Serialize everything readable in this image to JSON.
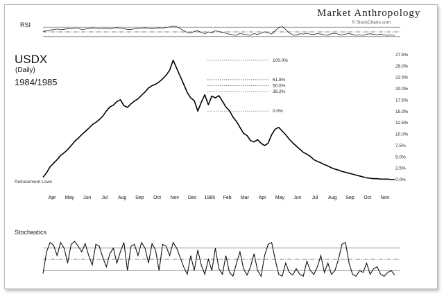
{
  "brand": {
    "name": "Market Anthropology",
    "credit": "© StockCharts.com"
  },
  "chart_data": {
    "type": "line",
    "title": "USDX",
    "subtitle": "(Daily)",
    "period": "1984/1985",
    "x_labels": [
      "Apr",
      "May",
      "Jun",
      "Jul",
      "Aug",
      "Sep",
      "Oct",
      "Nov",
      "Dec",
      "1985",
      "Feb",
      "Mar",
      "Apr",
      "May",
      "Jun",
      "Jul",
      "Aug",
      "Sep",
      "Oct",
      "Nov"
    ],
    "annotation_left": "Retracement Lows",
    "retracement": {
      "levels": [
        {
          "label": "100.0%",
          "value": 100.0
        },
        {
          "label": "61.8%",
          "value": 61.8
        },
        {
          "label": "50.0%",
          "value": 50.0
        },
        {
          "label": "38.2%",
          "value": 38.2
        },
        {
          "label": "0.0%",
          "value": 0.0
        }
      ]
    },
    "right_axis": {
      "ticks": [
        "27.5%",
        "25.0%",
        "22.5%",
        "20.0%",
        "17.5%",
        "15.0%",
        "12.5%",
        "10.0%",
        "7.5%",
        "5.0%",
        "2.5%",
        "0.0%"
      ],
      "range": [
        0,
        27.5
      ]
    },
    "series": [
      {
        "name": "USDX",
        "x": [
          0,
          1,
          2,
          3,
          4,
          5,
          6,
          7,
          8,
          9,
          10,
          11,
          12,
          13,
          14,
          15,
          16,
          17,
          18,
          19,
          20,
          21,
          22,
          23,
          24,
          25,
          26,
          27,
          28,
          29,
          30,
          31,
          32,
          33,
          34,
          35,
          36,
          37,
          38,
          39,
          40,
          41,
          42,
          43,
          44,
          45,
          46,
          47,
          48,
          49,
          50,
          51,
          52,
          53,
          54,
          55,
          56,
          57,
          58,
          59,
          60,
          61,
          62,
          63,
          64,
          65,
          66,
          67,
          68,
          69,
          70,
          71,
          72,
          73,
          74,
          75,
          76,
          77,
          78,
          79,
          80,
          81,
          82,
          83,
          84,
          85,
          86,
          87,
          88,
          89,
          90,
          91,
          92,
          93,
          94,
          95,
          96,
          97,
          98,
          99,
          100
        ],
        "values": [
          0.5,
          1.5,
          2.8,
          3.6,
          4.4,
          5.3,
          5.9,
          6.6,
          7.5,
          8.4,
          9.1,
          9.9,
          10.6,
          11.3,
          12.1,
          12.6,
          13.2,
          14.0,
          15.1,
          16.0,
          16.4,
          17.2,
          17.6,
          16.3,
          15.9,
          16.7,
          17.3,
          17.8,
          18.6,
          19.3,
          20.2,
          20.7,
          21.0,
          21.5,
          22.2,
          23.0,
          24.1,
          26.3,
          24.5,
          22.8,
          21.0,
          19.2,
          18.0,
          17.4,
          15.1,
          17.0,
          18.7,
          16.5,
          18.4,
          18.0,
          18.5,
          17.3,
          16.0,
          15.2,
          13.8,
          12.8,
          11.5,
          10.2,
          9.7,
          8.6,
          8.3,
          8.8,
          8.0,
          7.5,
          8.0,
          9.9,
          11.1,
          11.5,
          10.7,
          9.9,
          8.9,
          8.1,
          7.4,
          6.7,
          6.0,
          5.6,
          5.1,
          4.4,
          4.0,
          3.7,
          3.3,
          3.0,
          2.6,
          2.3,
          2.1,
          1.8,
          1.6,
          1.4,
          1.2,
          1.0,
          0.8,
          0.6,
          0.4,
          0.3,
          0.2,
          0.2,
          0.1,
          0.1,
          0.1,
          0.0,
          0.0
        ]
      }
    ],
    "rsi": {
      "label": "RSI",
      "range": [
        0,
        100
      ],
      "guides": [
        70,
        50,
        30
      ],
      "values": [
        52,
        55,
        58,
        60,
        62,
        59,
        61,
        64,
        63,
        66,
        65,
        60,
        62,
        64,
        67,
        66,
        63,
        65,
        64,
        62,
        66,
        68,
        65,
        63,
        61,
        60,
        63,
        64,
        66,
        67,
        66,
        63,
        65,
        67,
        66,
        69,
        71,
        74,
        72,
        64,
        56,
        47,
        45,
        52,
        55,
        48,
        42,
        50,
        46,
        55,
        51,
        48,
        44,
        40,
        38,
        36,
        44,
        40,
        38,
        36,
        43,
        39,
        45,
        50,
        47,
        41,
        55,
        68,
        72,
        60,
        45,
        38,
        36,
        42,
        41,
        44,
        40,
        39,
        43,
        41,
        38,
        36,
        42,
        44,
        40,
        37,
        41,
        43,
        39,
        36,
        38,
        35,
        40,
        42,
        39,
        38,
        40,
        37,
        36,
        38,
        35
      ]
    },
    "stochastics": {
      "label": "Stochastics",
      "range": [
        0,
        100
      ],
      "guides": [
        80,
        50,
        20
      ],
      "values": [
        12,
        70,
        95,
        88,
        60,
        95,
        80,
        40,
        90,
        98,
        85,
        70,
        92,
        60,
        35,
        90,
        85,
        55,
        30,
        65,
        80,
        40,
        70,
        95,
        20,
        85,
        90,
        60,
        95,
        80,
        40,
        92,
        75,
        20,
        90,
        85,
        60,
        95,
        80,
        55,
        30,
        10,
        60,
        20,
        75,
        35,
        10,
        50,
        20,
        80,
        25,
        10,
        60,
        15,
        5,
        40,
        70,
        25,
        8,
        30,
        65,
        20,
        5,
        60,
        90,
        95,
        50,
        10,
        5,
        40,
        15,
        8,
        25,
        10,
        5,
        45,
        20,
        10,
        30,
        60,
        15,
        40,
        10,
        20,
        50,
        90,
        95,
        40,
        10,
        5,
        20,
        15,
        40,
        10,
        25,
        30,
        10,
        5,
        15,
        20,
        8
      ]
    }
  }
}
